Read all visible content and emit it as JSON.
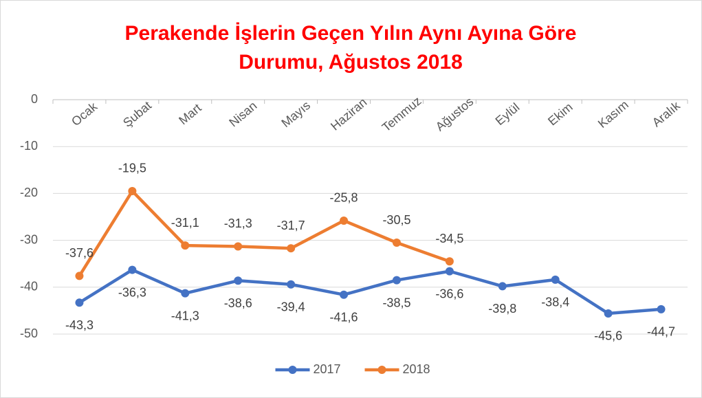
{
  "chart_data": {
    "type": "line",
    "title": "Perakende İşlerin Geçen Yılın Aynı Ayına Göre Durumu, Ağustos 2018",
    "categories": [
      "Ocak",
      "Şubat",
      "Mart",
      "Nisan",
      "Mayıs",
      "Haziran",
      "Temmuz",
      "Ağustos",
      "Eylül",
      "Ekim",
      "Kasım",
      "Aralık"
    ],
    "series": [
      {
        "name": "2017",
        "color": "#4472c4",
        "values": [
          -43.3,
          -36.3,
          -41.3,
          -38.6,
          -39.4,
          -41.6,
          -38.5,
          -36.6,
          -39.8,
          -38.4,
          -45.6,
          -44.7
        ],
        "value_labels": [
          "-43,3",
          "-36,3",
          "-41,3",
          "-38,6",
          "-39,4",
          "-41,6",
          "-38,5",
          "-36,6",
          "-39,8",
          "-38,4",
          "-45,6",
          "-44,7"
        ]
      },
      {
        "name": "2018",
        "color": "#ed7d31",
        "values": [
          -37.6,
          -19.5,
          -31.1,
          -31.3,
          -31.7,
          -25.8,
          -30.5,
          -34.5,
          null,
          null,
          null,
          null
        ],
        "value_labels": [
          "-37,6",
          "-19,5",
          "-31,1",
          "-31,3",
          "-31,7",
          "-25,8",
          "-30,5",
          "-34,5",
          null,
          null,
          null,
          null
        ]
      }
    ],
    "ylim": [
      -50,
      0
    ],
    "yticks": [
      0,
      -10,
      -20,
      -30,
      -40,
      -50
    ],
    "grid": true,
    "legend": "bottom"
  }
}
